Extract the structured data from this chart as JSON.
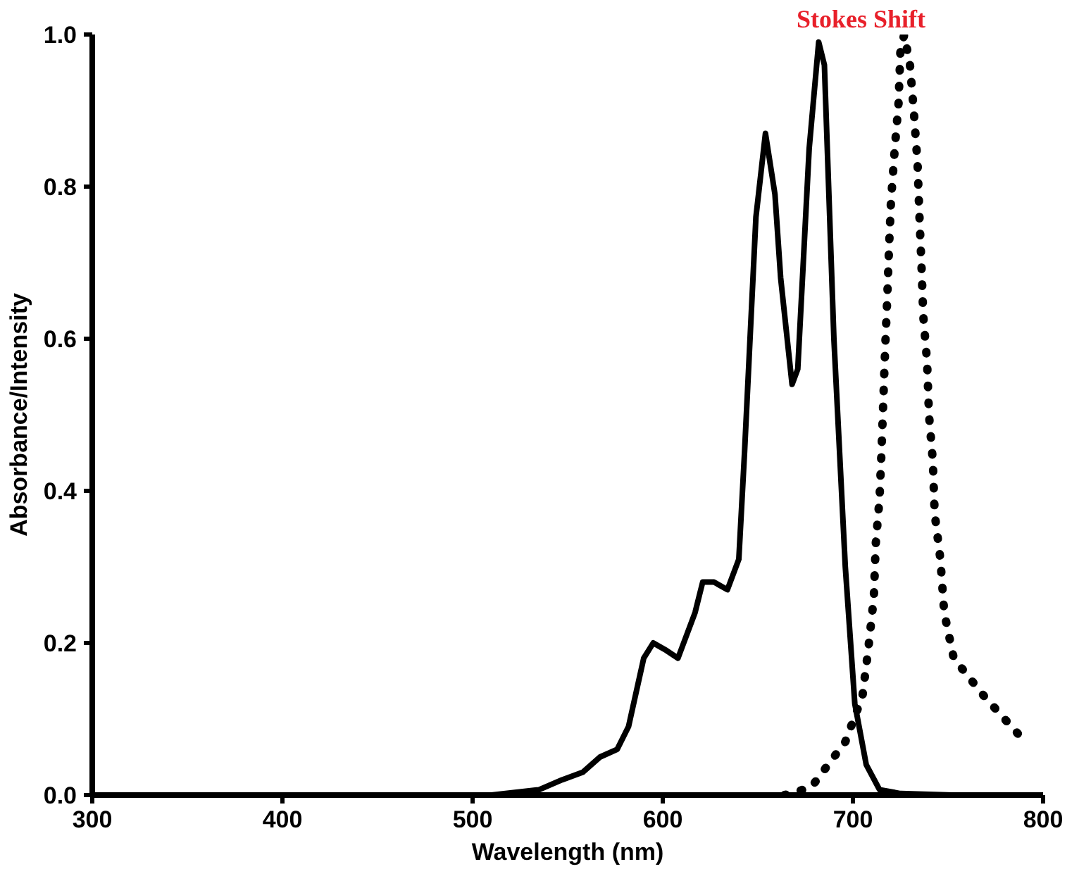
{
  "chart_data": {
    "type": "line",
    "xlabel": "Wavelength (nm)",
    "ylabel": "Absorbance/Intensity",
    "xlim": [
      300,
      800
    ],
    "ylim": [
      0,
      1.0
    ],
    "xticks": [
      300,
      400,
      500,
      600,
      700,
      800
    ],
    "yticks": [
      {
        "value": 0,
        "label": "0.0"
      },
      {
        "value": 0.2,
        "label": "0.2"
      },
      {
        "value": 0.4,
        "label": "0.4"
      },
      {
        "value": 0.6,
        "label": "0.6"
      },
      {
        "value": 0.8,
        "label": "0.8"
      },
      {
        "value": 1.0,
        "label": "1.0"
      }
    ],
    "grid": false,
    "annotations": [
      "Stokes Shift"
    ],
    "series": [
      {
        "color": "#000000",
        "line_style": "solid",
        "x": [
          510,
          535,
          547,
          558,
          567,
          576,
          582,
          590,
          595,
          602,
          608,
          617,
          621,
          627,
          634,
          640,
          643,
          649,
          654,
          659,
          662,
          668,
          671,
          677,
          682,
          685,
          690,
          696,
          701,
          707,
          714,
          725,
          752
        ],
        "values": [
          0,
          0.007,
          0.02,
          0.03,
          0.05,
          0.06,
          0.09,
          0.18,
          0.2,
          0.19,
          0.18,
          0.24,
          0.28,
          0.28,
          0.27,
          0.31,
          0.45,
          0.76,
          0.87,
          0.79,
          0.68,
          0.54,
          0.56,
          0.85,
          0.99,
          0.96,
          0.6,
          0.3,
          0.12,
          0.04,
          0.007,
          0.002,
          0
        ]
      },
      {
        "color": "#000000",
        "line_style": "dotted",
        "x": [
          664,
          678,
          696,
          705,
          708,
          711,
          712,
          714,
          715,
          716,
          717,
          718,
          719,
          720,
          722,
          724,
          725,
          727,
          730,
          732,
          734,
          735,
          736,
          737,
          739,
          740,
          742,
          743,
          746,
          748,
          753,
          769,
          787
        ],
        "values": [
          0,
          0.01,
          0.07,
          0.13,
          0.19,
          0.26,
          0.33,
          0.39,
          0.45,
          0.52,
          0.59,
          0.65,
          0.72,
          0.78,
          0.85,
          0.91,
          0.98,
          1.0,
          0.96,
          0.9,
          0.83,
          0.76,
          0.7,
          0.63,
          0.57,
          0.5,
          0.44,
          0.37,
          0.31,
          0.24,
          0.18,
          0.13,
          0.08
        ]
      }
    ]
  }
}
